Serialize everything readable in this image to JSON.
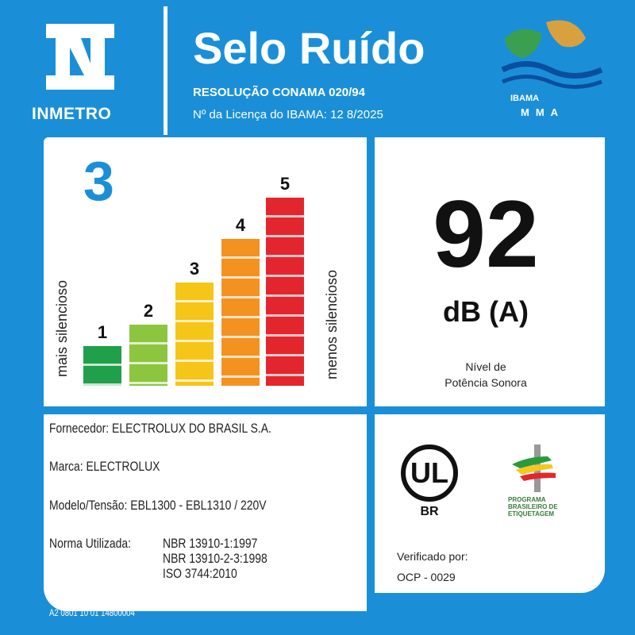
{
  "header": {
    "brand": "INMETRO",
    "title": "Selo Ruído",
    "resolution": "RESOLUÇÃO CONAMA 020/94",
    "license": "Nº da Licença do IBAMA: 12 8/2025",
    "ibama_label_1": "IBAMA",
    "ibama_label_2": "MMA"
  },
  "rating": {
    "class": "3",
    "left_label": "mais silencioso",
    "right_label": "menos silencioso",
    "bars": [
      {
        "label": "1",
        "level": 1,
        "color": "#20a04a"
      },
      {
        "label": "2",
        "level": 2,
        "color": "#8cc63f"
      },
      {
        "label": "3",
        "level": 3,
        "color": "#f5c518"
      },
      {
        "label": "4",
        "level": 4,
        "color": "#f39221"
      },
      {
        "label": "5",
        "level": 5,
        "color": "#e3262d"
      }
    ]
  },
  "sound": {
    "value": "92",
    "unit": "dB (A)",
    "desc_1": "Nível de",
    "desc_2": "Potência Sonora"
  },
  "info": {
    "supplier": "Fornecedor: ELECTROLUX DO BRASIL S.A.",
    "brand": "Marca: ELECTROLUX",
    "model": "Modelo/Tensão: EBL1300 - EBL1310 / 220V",
    "norm_label": "Norma Utilizada:",
    "norms": [
      "NBR 13910-1:1997",
      "NBR 13910-2-3:1998",
      "ISO 3744:2010"
    ]
  },
  "cert": {
    "ul_text": "UL",
    "ul_sub": "BR",
    "programa": "PROGRAMA BRASILEIRO DE ETIQUETAGEM",
    "verified": "Verificado por:",
    "ocp": "OCP - 0029"
  },
  "footer": "A2 0801 10   01 14800004"
}
